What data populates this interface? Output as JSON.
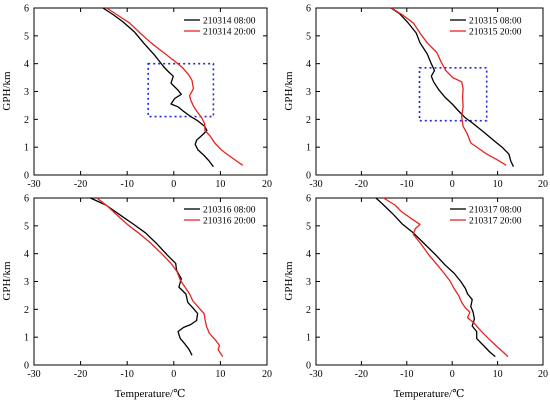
{
  "figure": {
    "ylabel": "GPH/km",
    "xlabel": "Temperature/℃"
  },
  "colors": {
    "morning": "#000000",
    "evening": "#e8231e",
    "box": "#1f2bd6"
  },
  "chart_data": [
    {
      "type": "line",
      "xlim": [
        -30,
        20
      ],
      "ylim": [
        0,
        6
      ],
      "xticks": [
        -30,
        -20,
        -10,
        0,
        10,
        20
      ],
      "yticks": [
        0,
        1,
        2,
        3,
        4,
        5,
        6
      ],
      "xticklabels": [
        "-30",
        "-20",
        "-10",
        "0",
        "10",
        "20"
      ],
      "yticklabels": [
        "0",
        "1",
        "2",
        "3",
        "4",
        "5",
        "6"
      ],
      "box": {
        "x": [
          -5.5,
          8.5
        ],
        "y": [
          2.1,
          4.0
        ]
      },
      "series": [
        {
          "name": "210314 08:00",
          "color": "#000000",
          "points": [
            [
              8.5,
              0.3
            ],
            [
              7.6,
              0.5
            ],
            [
              6.5,
              0.7
            ],
            [
              5.2,
              0.9
            ],
            [
              4.6,
              1.1
            ],
            [
              4.9,
              1.25
            ],
            [
              6.2,
              1.45
            ],
            [
              7.1,
              1.6
            ],
            [
              6.6,
              1.75
            ],
            [
              5.1,
              1.95
            ],
            [
              3.6,
              2.1
            ],
            [
              2.0,
              2.3
            ],
            [
              0.9,
              2.45
            ],
            [
              -0.6,
              2.55
            ],
            [
              0.2,
              2.75
            ],
            [
              1.6,
              2.9
            ],
            [
              0.9,
              3.05
            ],
            [
              -0.6,
              3.3
            ],
            [
              -0.1,
              3.55
            ],
            [
              -1.1,
              3.7
            ],
            [
              -2.2,
              3.9
            ],
            [
              -4.1,
              4.3
            ],
            [
              -6.5,
              4.75
            ],
            [
              -8.5,
              5.15
            ],
            [
              -10.9,
              5.5
            ],
            [
              -12.9,
              5.75
            ],
            [
              -15.2,
              6.0
            ]
          ]
        },
        {
          "name": "210314 20:00",
          "color": "#e8231e",
          "points": [
            [
              14.8,
              0.35
            ],
            [
              13.5,
              0.5
            ],
            [
              11.8,
              0.7
            ],
            [
              10.2,
              0.9
            ],
            [
              8.8,
              1.15
            ],
            [
              7.8,
              1.4
            ],
            [
              6.7,
              1.6
            ],
            [
              6.6,
              1.85
            ],
            [
              6.0,
              2.05
            ],
            [
              5.1,
              2.25
            ],
            [
              4.3,
              2.45
            ],
            [
              3.6,
              2.7
            ],
            [
              3.4,
              2.85
            ],
            [
              4.2,
              3.1
            ],
            [
              3.9,
              3.4
            ],
            [
              3.2,
              3.6
            ],
            [
              1.9,
              3.85
            ],
            [
              0.1,
              4.1
            ],
            [
              -2.6,
              4.45
            ],
            [
              -4.9,
              4.75
            ],
            [
              -7.2,
              5.1
            ],
            [
              -9.4,
              5.45
            ],
            [
              -12.1,
              5.75
            ],
            [
              -14.4,
              6.0
            ]
          ]
        }
      ]
    },
    {
      "type": "line",
      "xlim": [
        -30,
        20
      ],
      "ylim": [
        0,
        6
      ],
      "xticks": [
        -30,
        -20,
        -10,
        0,
        10,
        20
      ],
      "yticks": [
        0,
        1,
        2,
        3,
        4,
        5,
        6
      ],
      "xticklabels": [
        "-30",
        "-20",
        "-10",
        "0",
        "10",
        "20"
      ],
      "yticklabels": [
        "0",
        "1",
        "2",
        "3",
        "4",
        "5",
        "6"
      ],
      "box": {
        "x": [
          -7.2,
          7.6
        ],
        "y": [
          1.95,
          3.85
        ]
      },
      "series": [
        {
          "name": "210315 08:00",
          "color": "#000000",
          "points": [
            [
              13.5,
              0.3
            ],
            [
              12.9,
              0.5
            ],
            [
              12.5,
              0.75
            ],
            [
              11.0,
              1.0
            ],
            [
              9.1,
              1.25
            ],
            [
              6.9,
              1.55
            ],
            [
              4.6,
              1.85
            ],
            [
              2.9,
              2.05
            ],
            [
              1.4,
              2.3
            ],
            [
              0.0,
              2.55
            ],
            [
              -1.6,
              2.8
            ],
            [
              -2.9,
              3.05
            ],
            [
              -4.1,
              3.35
            ],
            [
              -4.6,
              3.55
            ],
            [
              -3.9,
              3.75
            ],
            [
              -4.6,
              4.0
            ],
            [
              -5.5,
              4.35
            ],
            [
              -7.1,
              4.75
            ],
            [
              -7.9,
              5.1
            ],
            [
              -9.9,
              5.5
            ],
            [
              -11.6,
              5.8
            ],
            [
              -13.5,
              6.0
            ]
          ]
        },
        {
          "name": "210315 20:00",
          "color": "#e8231e",
          "points": [
            [
              11.9,
              0.35
            ],
            [
              9.9,
              0.55
            ],
            [
              7.6,
              0.75
            ],
            [
              5.9,
              0.95
            ],
            [
              4.1,
              1.15
            ],
            [
              3.4,
              1.45
            ],
            [
              2.4,
              1.75
            ],
            [
              2.1,
              2.1
            ],
            [
              2.4,
              2.45
            ],
            [
              2.3,
              2.8
            ],
            [
              2.4,
              3.1
            ],
            [
              2.1,
              3.35
            ],
            [
              0.1,
              3.5
            ],
            [
              -1.4,
              3.75
            ],
            [
              -2.4,
              4.05
            ],
            [
              -3.4,
              4.4
            ],
            [
              -5.5,
              4.75
            ],
            [
              -6.9,
              5.05
            ],
            [
              -8.5,
              5.45
            ],
            [
              -10.9,
              5.75
            ],
            [
              -13.4,
              6.0
            ]
          ]
        }
      ]
    },
    {
      "type": "line",
      "xlim": [
        -30,
        20
      ],
      "ylim": [
        0,
        6
      ],
      "xticks": [
        -30,
        -20,
        -10,
        0,
        10,
        20
      ],
      "yticks": [
        0,
        1,
        2,
        3,
        4,
        5,
        6
      ],
      "xticklabels": [
        "-30",
        "-20",
        "-10",
        "0",
        "10",
        "20"
      ],
      "yticklabels": [
        "0",
        "1",
        "2",
        "3",
        "4",
        "5",
        "6"
      ],
      "series": [
        {
          "name": "210316 08:00",
          "color": "#000000",
          "points": [
            [
              3.9,
              0.35
            ],
            [
              3.3,
              0.55
            ],
            [
              2.4,
              0.75
            ],
            [
              1.4,
              0.95
            ],
            [
              0.9,
              1.2
            ],
            [
              2.1,
              1.35
            ],
            [
              3.6,
              1.45
            ],
            [
              4.9,
              1.6
            ],
            [
              5.1,
              1.85
            ],
            [
              4.1,
              2.05
            ],
            [
              3.0,
              2.25
            ],
            [
              2.6,
              2.55
            ],
            [
              1.1,
              2.8
            ],
            [
              1.6,
              3.1
            ],
            [
              0.6,
              3.4
            ],
            [
              0.4,
              3.65
            ],
            [
              -1.4,
              3.95
            ],
            [
              -3.6,
              4.35
            ],
            [
              -6.1,
              4.75
            ],
            [
              -8.6,
              5.05
            ],
            [
              -11.6,
              5.4
            ],
            [
              -14.6,
              5.75
            ],
            [
              -17.9,
              6.0
            ]
          ]
        },
        {
          "name": "210316 20:00",
          "color": "#e8231e",
          "points": [
            [
              10.5,
              0.3
            ],
            [
              9.5,
              0.55
            ],
            [
              9.8,
              0.7
            ],
            [
              8.9,
              0.9
            ],
            [
              7.6,
              1.15
            ],
            [
              7.0,
              1.4
            ],
            [
              6.7,
              1.65
            ],
            [
              6.5,
              1.85
            ],
            [
              5.4,
              2.05
            ],
            [
              4.1,
              2.3
            ],
            [
              3.4,
              2.55
            ],
            [
              2.4,
              2.8
            ],
            [
              1.4,
              3.05
            ],
            [
              0.7,
              3.35
            ],
            [
              -0.6,
              3.65
            ],
            [
              -2.6,
              4.0
            ],
            [
              -5.1,
              4.4
            ],
            [
              -7.6,
              4.75
            ],
            [
              -9.6,
              5.0
            ],
            [
              -11.6,
              5.3
            ],
            [
              -14.2,
              5.7
            ],
            [
              -16.5,
              6.0
            ]
          ]
        }
      ]
    },
    {
      "type": "line",
      "xlim": [
        -30,
        20
      ],
      "ylim": [
        0,
        6
      ],
      "xticks": [
        -30,
        -20,
        -10,
        0,
        10,
        20
      ],
      "yticks": [
        0,
        1,
        2,
        3,
        4,
        5,
        6
      ],
      "xticklabels": [
        "-30",
        "-20",
        "-10",
        "0",
        "10",
        "20"
      ],
      "yticklabels": [
        "0",
        "1",
        "2",
        "3",
        "4",
        "5",
        "6"
      ],
      "series": [
        {
          "name": "210317 08:00",
          "color": "#000000",
          "points": [
            [
              9.5,
              0.3
            ],
            [
              8.4,
              0.45
            ],
            [
              6.9,
              0.7
            ],
            [
              5.4,
              0.95
            ],
            [
              5.4,
              1.2
            ],
            [
              4.4,
              1.4
            ],
            [
              4.9,
              1.65
            ],
            [
              4.6,
              1.9
            ],
            [
              4.1,
              2.1
            ],
            [
              4.4,
              2.35
            ],
            [
              3.4,
              2.55
            ],
            [
              2.9,
              2.75
            ],
            [
              1.9,
              3.0
            ],
            [
              0.4,
              3.3
            ],
            [
              -1.6,
              3.6
            ],
            [
              -3.6,
              3.95
            ],
            [
              -6.1,
              4.35
            ],
            [
              -8.6,
              4.75
            ],
            [
              -10.9,
              5.05
            ],
            [
              -12.9,
              5.4
            ],
            [
              -15.1,
              5.75
            ],
            [
              -16.8,
              6.0
            ]
          ]
        },
        {
          "name": "210317 20:00",
          "color": "#e8231e",
          "points": [
            [
              12.3,
              0.3
            ],
            [
              11.0,
              0.5
            ],
            [
              9.6,
              0.7
            ],
            [
              8.3,
              0.9
            ],
            [
              7.1,
              1.1
            ],
            [
              5.9,
              1.3
            ],
            [
              4.9,
              1.5
            ],
            [
              3.4,
              1.7
            ],
            [
              3.9,
              1.9
            ],
            [
              2.9,
              2.05
            ],
            [
              2.1,
              2.25
            ],
            [
              1.4,
              2.5
            ],
            [
              0.4,
              2.75
            ],
            [
              -0.4,
              3.0
            ],
            [
              -1.8,
              3.3
            ],
            [
              -3.3,
              3.6
            ],
            [
              -5.1,
              3.95
            ],
            [
              -6.9,
              4.35
            ],
            [
              -8.6,
              4.7
            ],
            [
              -8.1,
              4.9
            ],
            [
              -7.1,
              5.05
            ],
            [
              -8.9,
              5.25
            ],
            [
              -11.1,
              5.5
            ],
            [
              -12.6,
              5.75
            ],
            [
              -15.1,
              6.0
            ]
          ]
        }
      ]
    }
  ]
}
